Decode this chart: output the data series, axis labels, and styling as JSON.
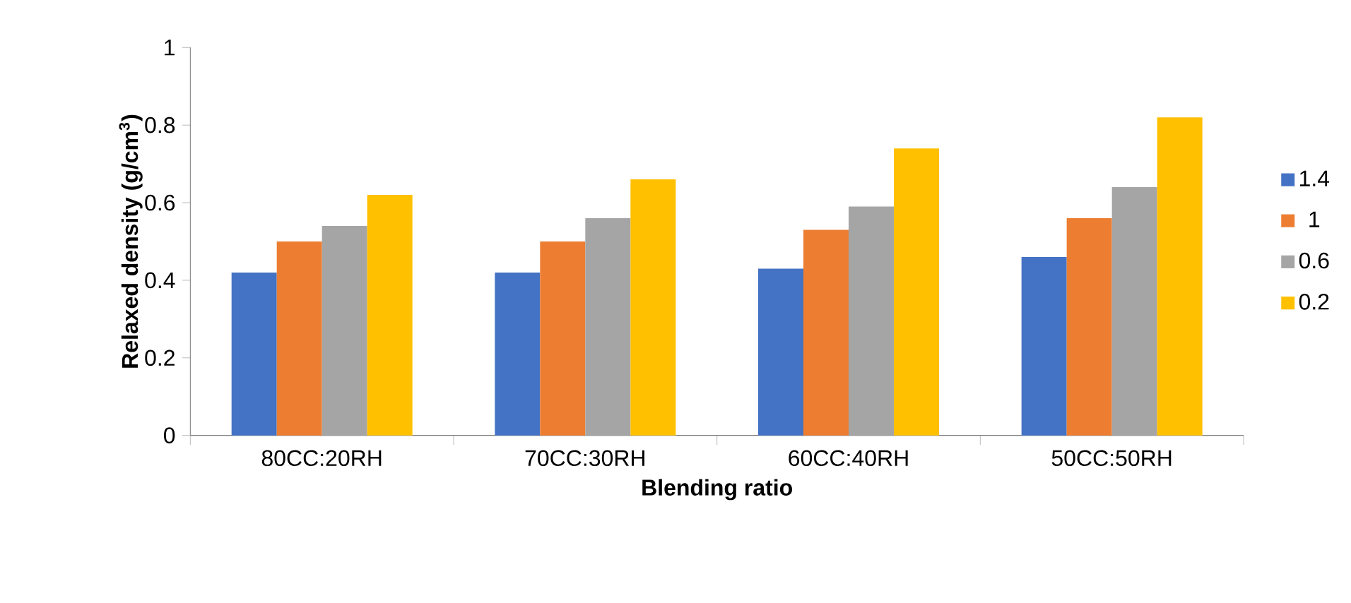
{
  "chart_data": {
    "type": "bar",
    "xlabel": "Blending ratio",
    "ylabel": "**Relaxed density (g/cm$^{3}$)**",
    "categories": [
      "80CC:20RH",
      "70CC:30RH",
      "60CC:40RH",
      "50CC:50RH"
    ],
    "series": [
      {
        "name": "1.4",
        "color": "#4472c4",
        "values": [
          0.42,
          0.42,
          0.43,
          0.46
        ]
      },
      {
        "name": "1",
        "color": "#ed7d31",
        "values": [
          0.5,
          0.5,
          0.53,
          0.56
        ]
      },
      {
        "name": "0.6",
        "color": "#a5a5a5",
        "values": [
          0.54,
          0.56,
          0.59,
          0.64
        ]
      },
      {
        "name": "0.2",
        "color": "#ffc000",
        "values": [
          0.62,
          0.66,
          0.74,
          0.82
        ]
      }
    ],
    "ylim": [
      0,
      1
    ],
    "yticks": [
      0,
      0.2,
      0.4,
      0.6,
      0.8,
      1
    ],
    "grid": false,
    "legend": "right"
  }
}
